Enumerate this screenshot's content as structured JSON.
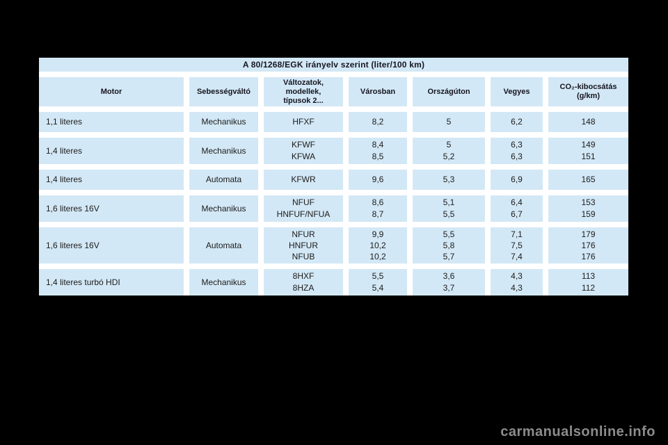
{
  "page": {
    "background": "#000000",
    "watermark": "carmanualsonline.info"
  },
  "colors": {
    "cell_background": "#d3e8f6",
    "gap": "#ffffff",
    "text": "#1b1b1b",
    "watermark_text": "#8c8c8c"
  },
  "table": {
    "title": "A 80/1268/EGK irányelv szerint (liter/100 km)",
    "columns": [
      "Motor",
      "Sebességváltó",
      "Változatok,\nmodellek,\ntípusok 2...",
      "Városban",
      "Országúton",
      "Vegyes",
      "CO₂-kibocsátás\n(g/km)"
    ],
    "rows": [
      {
        "motor": "1,1 literes",
        "gearbox": "Mechanikus",
        "variants": [
          "HFXF"
        ],
        "urban": [
          "8,2"
        ],
        "extra_urban": [
          "5"
        ],
        "combined": [
          "6,2"
        ],
        "co2": [
          "148"
        ]
      },
      {
        "motor": "1,4 literes",
        "gearbox": "Mechanikus",
        "variants": [
          "KFWF",
          "KFWA"
        ],
        "urban": [
          "8,4",
          "8,5"
        ],
        "extra_urban": [
          "5",
          "5,2"
        ],
        "combined": [
          "6,3",
          "6,3"
        ],
        "co2": [
          "149",
          "151"
        ]
      },
      {
        "motor": "1,4 literes",
        "gearbox": "Automata",
        "variants": [
          "KFWR"
        ],
        "urban": [
          "9,6"
        ],
        "extra_urban": [
          "5,3"
        ],
        "combined": [
          "6,9"
        ],
        "co2": [
          "165"
        ]
      },
      {
        "motor": "1,6 literes 16V",
        "gearbox": "Mechanikus",
        "variants": [
          "NFUF",
          "HNFUF/NFUA"
        ],
        "urban": [
          "8,6",
          "8,7"
        ],
        "extra_urban": [
          "5,1",
          "5,5"
        ],
        "combined": [
          "6,4",
          "6,7"
        ],
        "co2": [
          "153",
          "159"
        ]
      },
      {
        "motor": "1,6 literes 16V",
        "gearbox": "Automata",
        "variants": [
          "NFUR",
          "HNFUR",
          "NFUB"
        ],
        "urban": [
          "9,9",
          "10,2",
          "10,2"
        ],
        "extra_urban": [
          "5,5",
          "5,8",
          "5,7"
        ],
        "combined": [
          "7,1",
          "7,5",
          "7,4"
        ],
        "co2": [
          "179",
          "176",
          "176"
        ]
      },
      {
        "motor": "1,4 literes turbó HDI",
        "gearbox": "Mechanikus",
        "variants": [
          "8HXF",
          "8HZA"
        ],
        "urban": [
          "5,5",
          "5,4"
        ],
        "extra_urban": [
          "3,6",
          "3,7"
        ],
        "combined": [
          "4,3",
          "4,3"
        ],
        "co2": [
          "113",
          "112"
        ]
      }
    ]
  }
}
